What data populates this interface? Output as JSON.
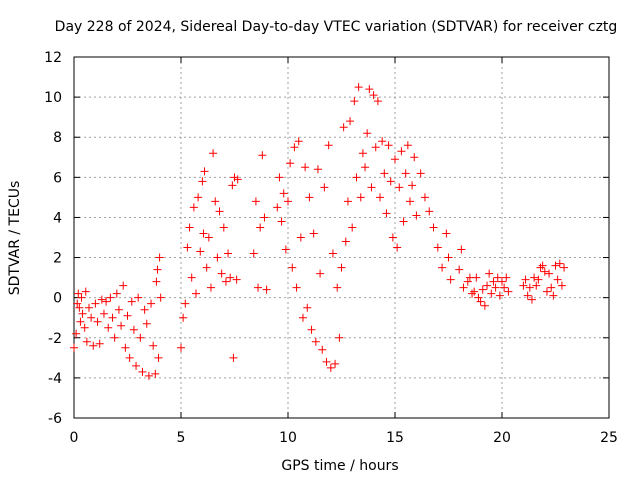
{
  "chart_data": {
    "type": "scatter",
    "title": "Day 228 of 2024, Sidereal Day-to-day VTEC variation (SDTVAR) for receiver cztg",
    "xlabel": "GPS time / hours",
    "ylabel": "SDTVAR / TECUs",
    "xlim": [
      0,
      25
    ],
    "ylim": [
      -6,
      12
    ],
    "xticks": [
      0,
      5,
      10,
      15,
      20,
      25
    ],
    "yticks": [
      -6,
      -4,
      -2,
      0,
      2,
      4,
      6,
      8,
      10,
      12
    ],
    "grid": true,
    "marker": "+",
    "color": "#ff0000",
    "series": [
      {
        "name": "SDTVAR",
        "points": [
          [
            0.0,
            -2.5
          ],
          [
            0.1,
            -1.8
          ],
          [
            0.15,
            -0.3
          ],
          [
            0.2,
            0.2
          ],
          [
            0.25,
            -0.5
          ],
          [
            0.3,
            -1.2
          ],
          [
            0.35,
            0.0
          ],
          [
            0.4,
            -0.8
          ],
          [
            0.5,
            -1.5
          ],
          [
            0.55,
            0.3
          ],
          [
            0.6,
            -2.2
          ],
          [
            0.7,
            -0.5
          ],
          [
            0.8,
            -1.0
          ],
          [
            0.9,
            -2.4
          ],
          [
            1.0,
            -0.3
          ],
          [
            1.1,
            -1.2
          ],
          [
            1.2,
            -2.3
          ],
          [
            1.3,
            -0.1
          ],
          [
            1.4,
            -0.8
          ],
          [
            1.5,
            -0.2
          ],
          [
            1.6,
            -1.5
          ],
          [
            1.7,
            0.0
          ],
          [
            1.8,
            -1.0
          ],
          [
            1.9,
            -2.0
          ],
          [
            2.0,
            0.2
          ],
          [
            2.1,
            -0.6
          ],
          [
            2.2,
            -1.4
          ],
          [
            2.3,
            0.6
          ],
          [
            2.4,
            -2.5
          ],
          [
            2.5,
            -0.9
          ],
          [
            2.6,
            -3.0
          ],
          [
            2.7,
            -0.2
          ],
          [
            2.8,
            -1.6
          ],
          [
            2.9,
            -3.4
          ],
          [
            3.0,
            0.0
          ],
          [
            3.1,
            -2.0
          ],
          [
            3.2,
            -3.7
          ],
          [
            3.3,
            -0.6
          ],
          [
            3.4,
            -1.3
          ],
          [
            3.5,
            -3.9
          ],
          [
            3.6,
            -0.3
          ],
          [
            3.7,
            -2.4
          ],
          [
            3.8,
            -3.8
          ],
          [
            3.85,
            0.8
          ],
          [
            3.9,
            1.4
          ],
          [
            3.95,
            -3.0
          ],
          [
            4.0,
            2.0
          ],
          [
            4.05,
            0.0
          ],
          [
            5.0,
            -2.5
          ],
          [
            5.1,
            -1.0
          ],
          [
            5.2,
            -0.3
          ],
          [
            5.3,
            2.5
          ],
          [
            5.4,
            3.5
          ],
          [
            5.5,
            1.0
          ],
          [
            5.6,
            4.5
          ],
          [
            5.7,
            0.2
          ],
          [
            5.8,
            5.0
          ],
          [
            5.9,
            2.3
          ],
          [
            6.0,
            5.8
          ],
          [
            6.05,
            3.2
          ],
          [
            6.1,
            6.3
          ],
          [
            6.2,
            1.5
          ],
          [
            6.3,
            3.0
          ],
          [
            6.4,
            0.5
          ],
          [
            6.5,
            7.2
          ],
          [
            6.6,
            4.8
          ],
          [
            6.7,
            2.0
          ],
          [
            6.8,
            4.3
          ],
          [
            6.9,
            1.2
          ],
          [
            7.0,
            3.5
          ],
          [
            7.1,
            0.8
          ],
          [
            7.2,
            2.2
          ],
          [
            7.3,
            1.0
          ],
          [
            7.4,
            5.6
          ],
          [
            7.45,
            -3.0
          ],
          [
            7.5,
            6.0
          ],
          [
            7.6,
            0.9
          ],
          [
            7.65,
            5.9
          ],
          [
            8.4,
            2.2
          ],
          [
            8.5,
            4.8
          ],
          [
            8.6,
            0.5
          ],
          [
            8.7,
            3.5
          ],
          [
            8.8,
            7.1
          ],
          [
            8.9,
            4.0
          ],
          [
            9.0,
            0.4
          ],
          [
            9.5,
            4.5
          ],
          [
            9.6,
            6.0
          ],
          [
            9.7,
            3.8
          ],
          [
            9.8,
            5.2
          ],
          [
            9.9,
            2.4
          ],
          [
            10.0,
            4.8
          ],
          [
            10.1,
            6.7
          ],
          [
            10.2,
            1.5
          ],
          [
            10.3,
            7.5
          ],
          [
            10.4,
            0.5
          ],
          [
            10.5,
            7.8
          ],
          [
            10.6,
            3.0
          ],
          [
            10.7,
            -1.0
          ],
          [
            10.8,
            6.5
          ],
          [
            10.9,
            -0.5
          ],
          [
            11.0,
            5.0
          ],
          [
            11.1,
            -1.6
          ],
          [
            11.2,
            3.2
          ],
          [
            11.3,
            -2.2
          ],
          [
            11.4,
            6.4
          ],
          [
            11.5,
            1.2
          ],
          [
            11.6,
            -2.6
          ],
          [
            11.7,
            5.5
          ],
          [
            11.8,
            -3.2
          ],
          [
            11.9,
            7.6
          ],
          [
            12.0,
            -3.5
          ],
          [
            12.1,
            2.2
          ],
          [
            12.2,
            -3.3
          ],
          [
            12.3,
            0.5
          ],
          [
            12.4,
            -2.0
          ],
          [
            12.5,
            1.5
          ],
          [
            12.6,
            8.5
          ],
          [
            12.7,
            2.8
          ],
          [
            12.8,
            4.8
          ],
          [
            12.9,
            8.8
          ],
          [
            13.0,
            3.5
          ],
          [
            13.1,
            9.8
          ],
          [
            13.2,
            6.0
          ],
          [
            13.3,
            10.5
          ],
          [
            13.4,
            5.0
          ],
          [
            13.5,
            7.2
          ],
          [
            13.6,
            6.5
          ],
          [
            13.7,
            8.2
          ],
          [
            13.8,
            10.4
          ],
          [
            13.9,
            5.5
          ],
          [
            14.0,
            10.1
          ],
          [
            14.1,
            7.5
          ],
          [
            14.2,
            9.8
          ],
          [
            14.3,
            5.0
          ],
          [
            14.4,
            7.8
          ],
          [
            14.5,
            6.2
          ],
          [
            14.6,
            4.2
          ],
          [
            14.7,
            7.6
          ],
          [
            14.8,
            5.8
          ],
          [
            14.9,
            3.0
          ],
          [
            15.0,
            6.9
          ],
          [
            15.1,
            2.5
          ],
          [
            15.2,
            5.5
          ],
          [
            15.3,
            7.3
          ],
          [
            15.4,
            3.8
          ],
          [
            15.5,
            6.2
          ],
          [
            15.6,
            7.6
          ],
          [
            15.7,
            4.8
          ],
          [
            15.8,
            5.6
          ],
          [
            15.9,
            7.0
          ],
          [
            16.0,
            4.1
          ],
          [
            16.2,
            6.2
          ],
          [
            16.4,
            5.0
          ],
          [
            16.6,
            4.3
          ],
          [
            16.8,
            3.5
          ],
          [
            17.0,
            2.5
          ],
          [
            17.2,
            1.5
          ],
          [
            17.4,
            3.2
          ],
          [
            17.5,
            2.0
          ],
          [
            17.6,
            0.9
          ],
          [
            18.0,
            1.4
          ],
          [
            18.1,
            2.4
          ],
          [
            18.2,
            0.5
          ],
          [
            18.4,
            0.8
          ],
          [
            18.5,
            1.0
          ],
          [
            18.6,
            0.2
          ],
          [
            18.7,
            0.3
          ],
          [
            18.8,
            1.0
          ],
          [
            18.9,
            0.0
          ],
          [
            19.0,
            -0.2
          ],
          [
            19.1,
            0.4
          ],
          [
            19.2,
            -0.4
          ],
          [
            19.3,
            0.6
          ],
          [
            19.4,
            1.2
          ],
          [
            19.5,
            0.2
          ],
          [
            19.6,
            0.8
          ],
          [
            19.7,
            0.5
          ],
          [
            19.8,
            1.0
          ],
          [
            19.9,
            0.1
          ],
          [
            20.0,
            0.8
          ],
          [
            20.1,
            0.5
          ],
          [
            20.2,
            1.0
          ],
          [
            20.3,
            0.3
          ],
          [
            21.0,
            0.6
          ],
          [
            21.1,
            0.9
          ],
          [
            21.2,
            0.1
          ],
          [
            21.3,
            0.5
          ],
          [
            21.4,
            -0.1
          ],
          [
            21.5,
            1.0
          ],
          [
            21.6,
            0.6
          ],
          [
            21.7,
            0.9
          ],
          [
            21.8,
            1.5
          ],
          [
            21.9,
            1.6
          ],
          [
            22.0,
            1.3
          ],
          [
            22.1,
            0.3
          ],
          [
            22.2,
            1.2
          ],
          [
            22.3,
            0.5
          ],
          [
            22.4,
            0.1
          ],
          [
            22.5,
            1.6
          ],
          [
            22.6,
            0.9
          ],
          [
            22.7,
            1.7
          ],
          [
            22.8,
            0.6
          ],
          [
            22.9,
            1.5
          ]
        ]
      }
    ]
  }
}
